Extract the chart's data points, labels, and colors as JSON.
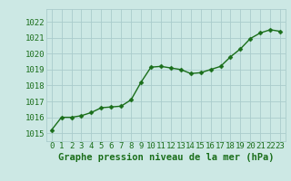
{
  "x": [
    0,
    1,
    2,
    3,
    4,
    5,
    6,
    7,
    8,
    9,
    10,
    11,
    12,
    13,
    14,
    15,
    16,
    17,
    18,
    19,
    20,
    21,
    22,
    23
  ],
  "y": [
    1015.2,
    1016.0,
    1016.0,
    1016.1,
    1016.3,
    1016.6,
    1016.65,
    1016.7,
    1017.1,
    1018.2,
    1019.15,
    1019.2,
    1019.1,
    1019.0,
    1018.75,
    1018.8,
    1019.0,
    1019.2,
    1019.8,
    1020.3,
    1020.95,
    1021.3,
    1021.5,
    1021.4
  ],
  "line_color": "#1a6e1a",
  "marker_color": "#1a6e1a",
  "bg_color": "#cce8e4",
  "grid_color": "#aacccc",
  "xlabel": "Graphe pression niveau de la mer (hPa)",
  "xlabel_color": "#1a6e1a",
  "tick_color": "#1a6e1a",
  "ylim": [
    1014.5,
    1022.8
  ],
  "yticks": [
    1015,
    1016,
    1017,
    1018,
    1019,
    1020,
    1021,
    1022
  ],
  "xticks": [
    0,
    1,
    2,
    3,
    4,
    5,
    6,
    7,
    8,
    9,
    10,
    11,
    12,
    13,
    14,
    15,
    16,
    17,
    18,
    19,
    20,
    21,
    22,
    23
  ],
  "marker_size": 2.5,
  "line_width": 1.0,
  "font_size_tick": 6.5,
  "font_size_label": 7.5
}
